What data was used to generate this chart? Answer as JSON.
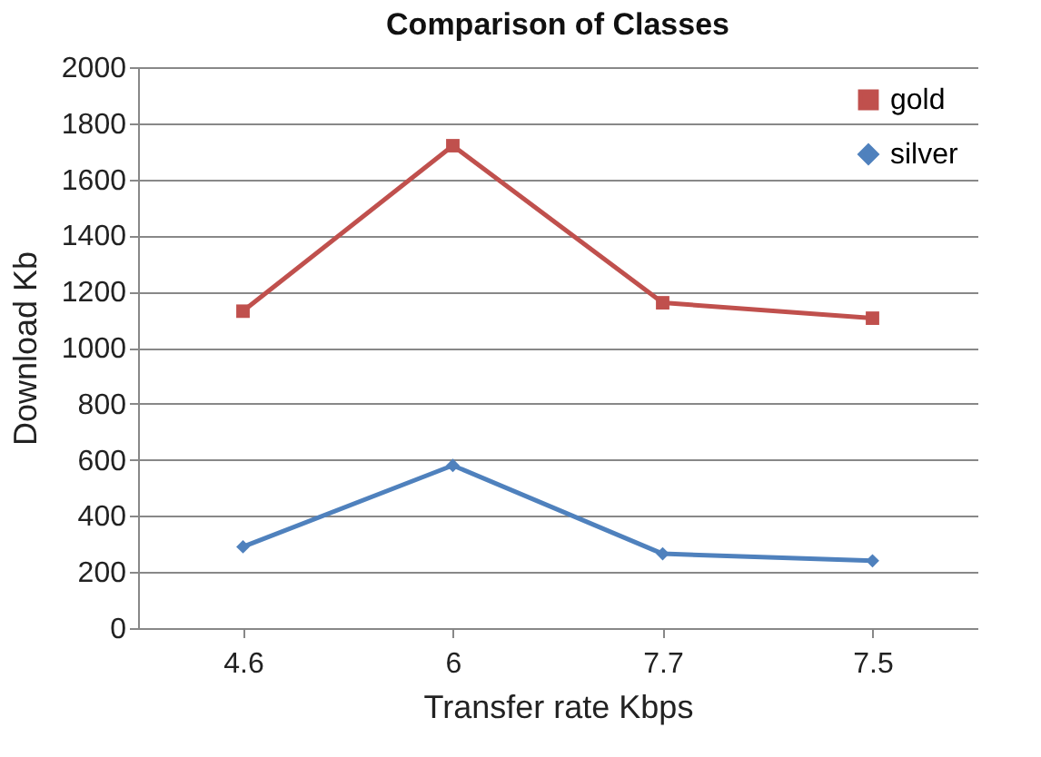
{
  "chart_data": {
    "type": "line",
    "title": "Comparison of Classes",
    "xlabel": "Transfer rate Kbps",
    "ylabel": "Download Kb",
    "categories": [
      "4.6",
      "6",
      "7.7",
      "7.5"
    ],
    "series": [
      {
        "name": "gold",
        "color": "#c0504d",
        "marker": "square",
        "values": [
          1130,
          1720,
          1160,
          1105
        ]
      },
      {
        "name": "silver",
        "color": "#4f81bd",
        "marker": "diamond",
        "values": [
          290,
          580,
          265,
          240
        ]
      }
    ],
    "ylim": [
      0,
      2000
    ],
    "yticks": [
      0,
      200,
      400,
      600,
      800,
      1000,
      1200,
      1400,
      1600,
      1800,
      2000
    ],
    "grid": "y",
    "legend": "top right",
    "line_style": "solid"
  }
}
